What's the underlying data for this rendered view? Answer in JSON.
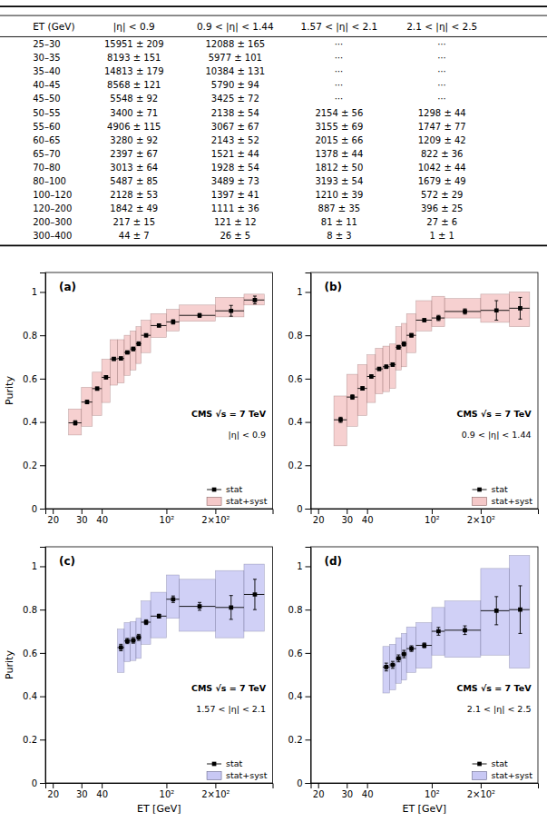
{
  "chart_data": [
    {
      "type": "table",
      "headers": [
        "ET (GeV)",
        "|η| < 0.9",
        "0.9 < |η| < 1.44",
        "1.57 < |η| < 2.1",
        "2.1 < |η| < 2.5"
      ],
      "rows": [
        [
          "25–30",
          "15951 ± 209",
          "12088 ± 165",
          "⋯",
          "⋯"
        ],
        [
          "30–35",
          "8193 ± 151",
          "5977 ± 101",
          "⋯",
          "⋯"
        ],
        [
          "35–40",
          "14813 ± 179",
          "10384 ± 131",
          "⋯",
          "⋯"
        ],
        [
          "40–45",
          "8568 ± 121",
          "5790 ± 94",
          "⋯",
          "⋯"
        ],
        [
          "45–50",
          "5548 ± 92",
          "3425 ± 72",
          "⋯",
          "⋯"
        ],
        [
          "50–55",
          "3400 ± 71",
          "2138 ± 54",
          "2154 ± 56",
          "1298 ± 44"
        ],
        [
          "55–60",
          "4906 ± 115",
          "3067 ± 67",
          "3155 ± 69",
          "1747 ± 77"
        ],
        [
          "60–65",
          "3280 ± 92",
          "2143 ± 52",
          "2015 ± 66",
          "1209 ± 42"
        ],
        [
          "65–70",
          "2397 ± 67",
          "1521 ± 44",
          "1378 ± 44",
          "822 ± 36"
        ],
        [
          "70–80",
          "3013 ± 64",
          "1928 ± 54",
          "1812 ± 50",
          "1042 ± 44"
        ],
        [
          "80–100",
          "5487 ± 85",
          "3489 ± 73",
          "3193 ± 54",
          "1679 ± 49"
        ],
        [
          "100–120",
          "2128 ± 53",
          "1397 ± 41",
          "1210 ± 39",
          "572 ± 29"
        ],
        [
          "120–200",
          "1842 ± 49",
          "1111 ± 36",
          "887 ± 35",
          "396 ± 25"
        ],
        [
          "200–300",
          "217 ± 15",
          "121 ± 12",
          "81 ± 11",
          "27 ± 6"
        ],
        [
          "300–400",
          "44 ± 7",
          "26 ± 5",
          "8 ± 3",
          "1 ± 1"
        ]
      ]
    },
    {
      "type": "errorbar",
      "title": "(a)",
      "ylabel": "Purity",
      "annotations": [
        "CMS √s = 7 TeV",
        "|η| < 0.9"
      ],
      "log": "x",
      "xlim": [
        18,
        450
      ],
      "ylim": [
        0,
        1.09
      ],
      "xticks": [
        20,
        30,
        40,
        {
          "value": 100,
          "label": "10²"
        },
        {
          "value": 200,
          "label": "2×10²"
        }
      ],
      "yticks": [
        0,
        0.2,
        0.4,
        0.6,
        0.8,
        1
      ],
      "legend": "lower right",
      "x": [
        27.5,
        32.5,
        37.5,
        42.5,
        47.5,
        52.5,
        57.5,
        62.5,
        67.5,
        75.0,
        90.0,
        110.0,
        160.0,
        250.0,
        350.0
      ],
      "x_lo": [
        25,
        30,
        35,
        40,
        45,
        50,
        55,
        60,
        65,
        70,
        80,
        100,
        120,
        200,
        300
      ],
      "x_hi": [
        30,
        35,
        40,
        45,
        50,
        55,
        60,
        65,
        70,
        80,
        100,
        120,
        200,
        300,
        400
      ],
      "series": [
        {
          "name": "stat",
          "type": "errorbar",
          "color": "black",
          "marker": "square",
          "values": [
            0.396,
            0.492,
            0.554,
            0.606,
            0.691,
            0.693,
            0.721,
            0.737,
            0.761,
            0.8,
            0.845,
            0.862,
            0.892,
            0.913,
            0.963
          ],
          "errors": [
            0.01,
            0.008,
            0.007,
            0.007,
            0.006,
            0.007,
            0.007,
            0.008,
            0.009,
            0.007,
            0.006,
            0.01,
            0.009,
            0.025,
            0.018
          ]
        },
        {
          "name": "stat+syst",
          "type": "band",
          "color": "#f0b0b0",
          "lows": [
            0.34,
            0.38,
            0.43,
            0.49,
            0.57,
            0.58,
            0.615,
            0.64,
            0.67,
            0.72,
            0.79,
            0.82,
            0.865,
            0.885,
            0.94
          ],
          "highs": [
            0.46,
            0.56,
            0.63,
            0.69,
            0.78,
            0.78,
            0.8,
            0.82,
            0.84,
            0.87,
            0.9,
            0.92,
            0.94,
            0.975,
            0.99
          ]
        }
      ]
    },
    {
      "type": "errorbar",
      "title": "(b)",
      "annotations": [
        "CMS √s = 7 TeV",
        "0.9 < |η| < 1.44"
      ],
      "log": "x",
      "xlim": [
        18,
        450
      ],
      "ylim": [
        0,
        1.09
      ],
      "xticks": [
        20,
        30,
        40,
        {
          "value": 100,
          "label": "10²"
        },
        {
          "value": 200,
          "label": "2×10²"
        }
      ],
      "yticks": [
        0,
        0.2,
        0.4,
        0.6,
        0.8,
        1
      ],
      "legend": "lower right",
      "x": [
        27.5,
        32.5,
        37.5,
        42.5,
        47.5,
        52.5,
        57.5,
        62.5,
        67.5,
        75.0,
        90.0,
        110.0,
        160.0,
        250.0,
        350.0
      ],
      "x_lo": [
        25,
        30,
        35,
        40,
        45,
        50,
        55,
        60,
        65,
        70,
        80,
        100,
        120,
        200,
        300
      ],
      "x_hi": [
        30,
        35,
        40,
        45,
        50,
        55,
        60,
        65,
        70,
        80,
        100,
        120,
        200,
        300,
        400
      ],
      "series": [
        {
          "name": "stat",
          "type": "errorbar",
          "color": "black",
          "marker": "square",
          "values": [
            0.41,
            0.515,
            0.555,
            0.61,
            0.645,
            0.655,
            0.665,
            0.745,
            0.76,
            0.8,
            0.87,
            0.88,
            0.91,
            0.915,
            0.925
          ],
          "errors": [
            0.012,
            0.01,
            0.008,
            0.008,
            0.007,
            0.008,
            0.008,
            0.009,
            0.01,
            0.008,
            0.007,
            0.012,
            0.012,
            0.045,
            0.05
          ]
        },
        {
          "name": "stat+syst",
          "type": "band",
          "color": "#f0b0b0",
          "lows": [
            0.29,
            0.38,
            0.43,
            0.49,
            0.53,
            0.54,
            0.555,
            0.64,
            0.655,
            0.72,
            0.82,
            0.84,
            0.88,
            0.86,
            0.84
          ],
          "highs": [
            0.52,
            0.62,
            0.665,
            0.71,
            0.74,
            0.75,
            0.76,
            0.84,
            0.855,
            0.9,
            0.96,
            0.98,
            0.97,
            0.99,
            1.0
          ]
        }
      ]
    },
    {
      "type": "errorbar",
      "title": "(c)",
      "xlabel": "ET [GeV]",
      "ylabel": "Purity",
      "annotations": [
        "CMS √s = 7 TeV",
        "1.57 < |η| < 2.1"
      ],
      "log": "x",
      "xlim": [
        18,
        450
      ],
      "ylim": [
        0,
        1.09
      ],
      "xticks": [
        20,
        30,
        40,
        {
          "value": 100,
          "label": "10²"
        },
        {
          "value": 200,
          "label": "2×10²"
        }
      ],
      "yticks": [
        0,
        0.2,
        0.4,
        0.6,
        0.8,
        1
      ],
      "legend": "lower right",
      "x": [
        52.5,
        57.5,
        62.5,
        67.5,
        75.0,
        90.0,
        110.0,
        160.0,
        250.0,
        350.0
      ],
      "x_lo": [
        50,
        55,
        60,
        65,
        70,
        80,
        100,
        120,
        200,
        300
      ],
      "x_hi": [
        55,
        60,
        65,
        70,
        80,
        100,
        120,
        200,
        300,
        400
      ],
      "series": [
        {
          "name": "stat",
          "type": "errorbar",
          "color": "black",
          "marker": "square",
          "values": [
            0.625,
            0.655,
            0.658,
            0.672,
            0.742,
            0.77,
            0.848,
            0.815,
            0.81,
            0.87
          ],
          "errors": [
            0.015,
            0.012,
            0.013,
            0.014,
            0.011,
            0.009,
            0.015,
            0.018,
            0.055,
            0.07
          ]
        },
        {
          "name": "stat+syst",
          "type": "band",
          "color": "#b0b0f0",
          "lows": [
            0.51,
            0.56,
            0.565,
            0.575,
            0.64,
            0.67,
            0.76,
            0.7,
            0.67,
            0.7
          ],
          "highs": [
            0.71,
            0.74,
            0.745,
            0.76,
            0.84,
            0.88,
            0.96,
            0.94,
            0.98,
            1.01
          ]
        }
      ]
    },
    {
      "type": "errorbar",
      "title": "(d)",
      "xlabel": "ET [GeV]",
      "annotations": [
        "CMS √s = 7 TeV",
        "2.1 < |η| < 2.5"
      ],
      "log": "x",
      "xlim": [
        18,
        450
      ],
      "ylim": [
        0,
        1.09
      ],
      "xticks": [
        20,
        30,
        40,
        {
          "value": 100,
          "label": "10²"
        },
        {
          "value": 200,
          "label": "2×10²"
        }
      ],
      "yticks": [
        0,
        0.2,
        0.4,
        0.6,
        0.8,
        1
      ],
      "legend": "lower right",
      "x": [
        52.5,
        57.5,
        62.5,
        67.5,
        75.0,
        90.0,
        110.0,
        160.0,
        250.0,
        350.0
      ],
      "x_lo": [
        50,
        55,
        60,
        65,
        70,
        80,
        100,
        120,
        200,
        300
      ],
      "x_hi": [
        55,
        60,
        65,
        70,
        80,
        100,
        120,
        200,
        300,
        400
      ],
      "series": [
        {
          "name": "stat",
          "type": "errorbar",
          "color": "black",
          "marker": "square",
          "values": [
            0.535,
            0.545,
            0.575,
            0.595,
            0.62,
            0.635,
            0.7,
            0.705,
            0.795,
            0.8
          ],
          "errors": [
            0.018,
            0.016,
            0.016,
            0.017,
            0.013,
            0.011,
            0.018,
            0.02,
            0.065,
            0.11
          ]
        },
        {
          "name": "stat+syst",
          "type": "band",
          "color": "#b0b0f0",
          "lows": [
            0.415,
            0.43,
            0.46,
            0.475,
            0.51,
            0.53,
            0.59,
            0.58,
            0.59,
            0.53
          ],
          "highs": [
            0.63,
            0.64,
            0.67,
            0.69,
            0.72,
            0.74,
            0.81,
            0.84,
            0.99,
            1.05
          ]
        }
      ]
    }
  ]
}
